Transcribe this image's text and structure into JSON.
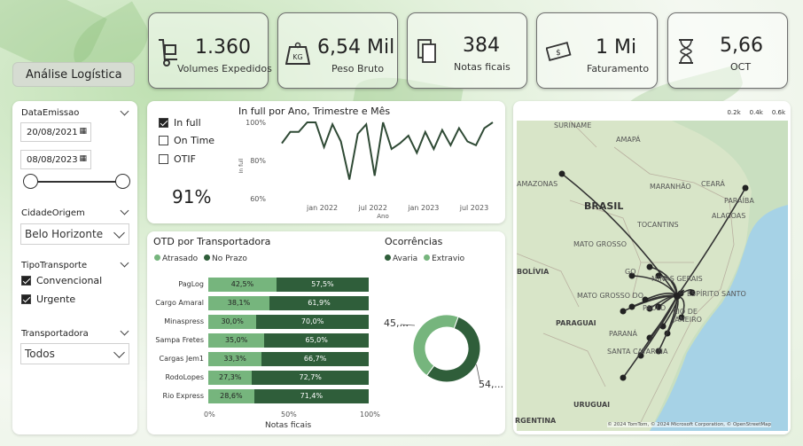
{
  "header": {
    "title": "Análise Logística"
  },
  "kpis": [
    {
      "value": "1.360",
      "label": "Volumes Expedidos",
      "icon": "hand-truck-icon"
    },
    {
      "value": "6,54 Mil",
      "label": "Peso Bruto",
      "icon": "kg-weight-icon"
    },
    {
      "value": "384",
      "label": "Notas ficais",
      "icon": "documents-icon"
    },
    {
      "value": "1 Mi",
      "label": "Faturamento",
      "icon": "money-icon"
    },
    {
      "value": "5,66",
      "label": "OCT",
      "icon": "hourglass-icon"
    }
  ],
  "filters": {
    "date": {
      "label": "DataEmissao",
      "start": "20/08/2021",
      "end": "08/08/2023"
    },
    "cidade": {
      "label": "CidadeOrigem",
      "value": "Belo Horizonte"
    },
    "tipo": {
      "label": "TipoTransporte",
      "options": [
        {
          "label": "Convencional",
          "checked": true
        },
        {
          "label": "Urgente",
          "checked": true
        }
      ]
    },
    "transportadora": {
      "label": "Transportadora",
      "value": "Todos"
    }
  },
  "infull": {
    "options": [
      {
        "label": "In full",
        "selected": true
      },
      {
        "label": "On Time",
        "selected": false
      },
      {
        "label": "OTIF",
        "selected": false
      }
    ],
    "value": "91%"
  },
  "colors": {
    "dark_green": "#2f5e3a",
    "light_green": "#76b57d",
    "line": "#2f4a35"
  },
  "chart_data": [
    {
      "type": "line",
      "title": "In full por Ano, Trimestre e Mês",
      "xlabel": "Ano",
      "ylabel": "In full",
      "yticks": [
        "100%",
        "80%",
        "60%"
      ],
      "xticks": [
        "jan 2022",
        "jul 2022",
        "jan 2023",
        "jul 2023"
      ],
      "ylim": [
        60,
        100
      ],
      "values": [
        89,
        95,
        95,
        100,
        100,
        87,
        99,
        90,
        70,
        94,
        99,
        72,
        100,
        86,
        89,
        93,
        84,
        95,
        86,
        96,
        88,
        97,
        90,
        88,
        97,
        100
      ]
    },
    {
      "type": "bar",
      "title": "OTD por Transportadora",
      "xlabel": "Notas ficais",
      "xticks": [
        "0%",
        "50%",
        "100%"
      ],
      "series_names": [
        "Atrasado",
        "No Prazo"
      ],
      "categories": [
        "PagLog",
        "Cargo Amaral",
        "Minaspress",
        "Sampa Fretes",
        "Cargas Jem1",
        "RodoLopes",
        "Rio Express"
      ],
      "atrasado": [
        42.5,
        38.1,
        30.0,
        35.0,
        33.3,
        27.3,
        28.6
      ],
      "no_prazo": [
        57.5,
        61.9,
        70.0,
        65.0,
        66.7,
        72.7,
        71.4
      ],
      "atrasado_labels": [
        "42,5%",
        "38,1%",
        "30,0%",
        "35,0%",
        "33,3%",
        "27,3%",
        "28,6%"
      ],
      "no_prazo_labels": [
        "57,5%",
        "61,9%",
        "70,0%",
        "65,0%",
        "66,7%",
        "72,7%",
        "71,4%"
      ]
    },
    {
      "type": "pie",
      "title": "Ocorrências",
      "series_names": [
        "Avaria",
        "Extravio"
      ],
      "values": [
        54,
        45
      ],
      "labels": [
        "54,...",
        "45,..."
      ]
    }
  ],
  "map": {
    "scale": [
      "0.2k",
      "0.4k",
      "0.6k"
    ],
    "labels": [
      "SURINAME",
      "AMAPÁ",
      "BRASIL",
      "MARANHÃO",
      "CEARÁ",
      "PARAÍBA",
      "ALAGOAS",
      "TOCANTINS",
      "MATO GROSSO",
      "BOLÍVIA",
      "GO",
      "MINAS GERAIS",
      "ESPÍRITO SANTO",
      "MATO GROSSO DO",
      "PAULO",
      "RIO DE JANEIRO",
      "PARAGUAI",
      "PARANÁ",
      "SANTA CATARINA",
      "URUGUAI",
      "RGENTINA",
      "AMAZONAS"
    ],
    "attribution": "© 2024 TomTom, © 2024 Microsoft Corporation, © OpenStreetMap"
  }
}
